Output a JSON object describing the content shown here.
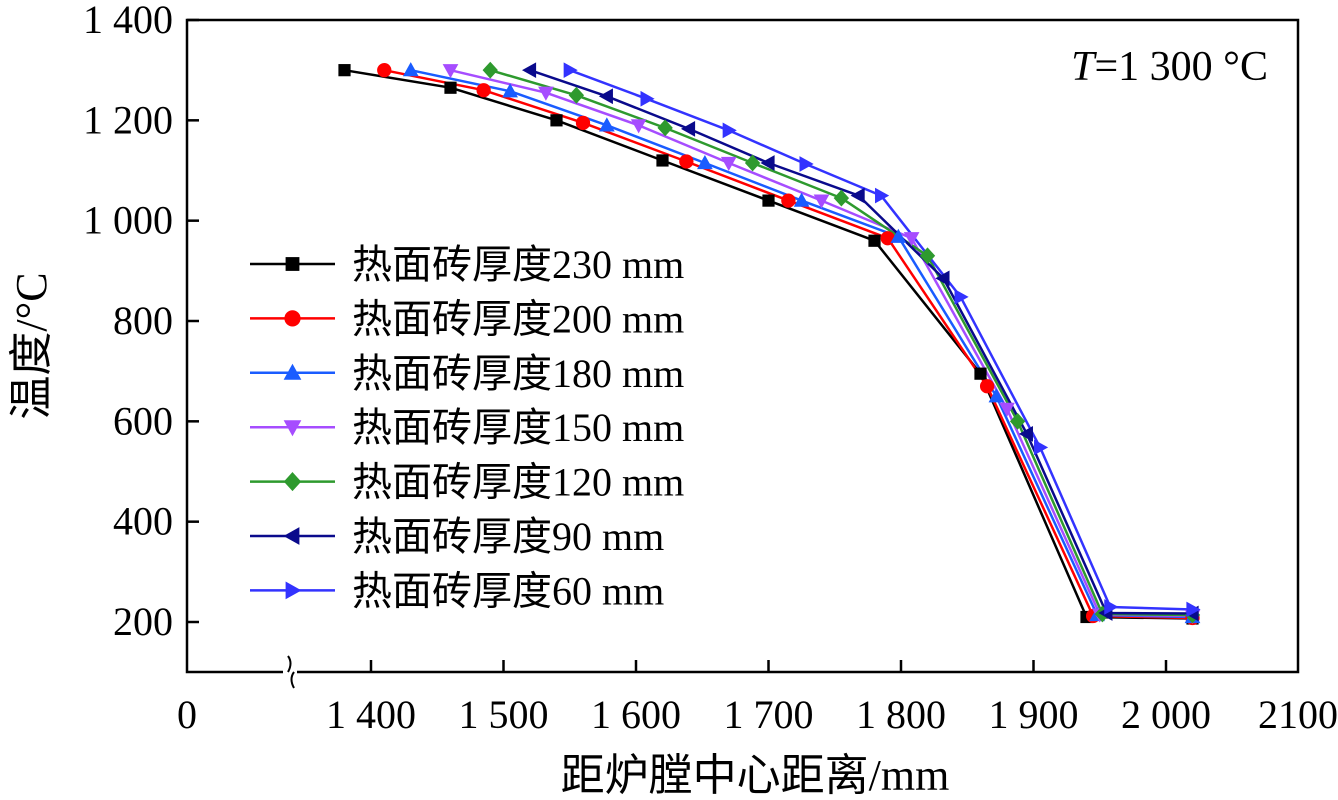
{
  "chart_data": {
    "type": "line",
    "annotation": "T=1 300 °C",
    "annotation_var": "T",
    "annotation_rest": "=1 300 °C",
    "xlabel": "距炉膛中心距离/mm",
    "ylabel": "温度/°C",
    "ylim": [
      100,
      1400
    ],
    "xlim": [
      1300,
      2100
    ],
    "x_break": true,
    "x_ticks": [
      {
        "value": 1400,
        "label": "1 400"
      },
      {
        "value": 1500,
        "label": "1 500"
      },
      {
        "value": 1600,
        "label": "1 600"
      },
      {
        "value": 1700,
        "label": "1 700"
      },
      {
        "value": 1800,
        "label": "1 800"
      },
      {
        "value": 1900,
        "label": "1 900"
      },
      {
        "value": 2000,
        "label": "2 000"
      },
      {
        "value": 2100,
        "label": "2100"
      }
    ],
    "x_zero_label": "0",
    "y_ticks": [
      {
        "value": 200,
        "label": "200"
      },
      {
        "value": 400,
        "label": "400"
      },
      {
        "value": 600,
        "label": "600"
      },
      {
        "value": 800,
        "label": "800"
      },
      {
        "value": 1000,
        "label": "1 000"
      },
      {
        "value": 1200,
        "label": "1 200"
      },
      {
        "value": 1400,
        "label": "1 400"
      }
    ],
    "grid": false,
    "legend_position": "left-middle",
    "series": [
      {
        "name": "热面砖厚度230 mm",
        "color": "#000000",
        "marker": "square",
        "x": [
          1380,
          1460,
          1540,
          1620,
          1700,
          1780,
          1860,
          1940,
          2020
        ],
        "y": [
          1300,
          1265,
          1200,
          1120,
          1040,
          960,
          695,
          210,
          207
        ]
      },
      {
        "name": "热面砖厚度200 mm",
        "color": "#ff0000",
        "marker": "circle",
        "x": [
          1410,
          1485,
          1560,
          1638,
          1715,
          1790,
          1865,
          1945,
          2020
        ],
        "y": [
          1300,
          1260,
          1195,
          1118,
          1040,
          965,
          670,
          212,
          208
        ]
      },
      {
        "name": "热面砖厚度180 mm",
        "color": "#1a5cff",
        "marker": "triangle-up",
        "x": [
          1430,
          1505,
          1578,
          1652,
          1725,
          1798,
          1872,
          1948,
          2020
        ],
        "y": [
          1300,
          1258,
          1190,
          1115,
          1040,
          968,
          650,
          214,
          210
        ]
      },
      {
        "name": "热面砖厚度150 mm",
        "color": "#a64dff",
        "marker": "triangle-down",
        "x": [
          1460,
          1532,
          1602,
          1670,
          1740,
          1808,
          1880,
          1950,
          2020
        ],
        "y": [
          1300,
          1255,
          1190,
          1115,
          1040,
          965,
          625,
          215,
          212
        ]
      },
      {
        "name": "热面砖厚度120 mm",
        "color": "#2e9a2e",
        "marker": "diamond",
        "x": [
          1490,
          1555,
          1622,
          1688,
          1755,
          1820,
          1888,
          1952,
          2020
        ],
        "y": [
          1300,
          1250,
          1185,
          1115,
          1045,
          930,
          600,
          216,
          214
        ]
      },
      {
        "name": "热面砖厚度90 mm",
        "color": "#0a0a8c",
        "marker": "triangle-left",
        "x": [
          1520,
          1578,
          1640,
          1700,
          1768,
          1832,
          1895,
          1955,
          2020
        ],
        "y": [
          1300,
          1248,
          1183,
          1115,
          1050,
          885,
          575,
          218,
          217
        ]
      },
      {
        "name": "热面砖厚度60 mm",
        "color": "#3333ff",
        "marker": "triangle-right",
        "x": [
          1550,
          1608,
          1670,
          1728,
          1785,
          1845,
          1905,
          1958,
          2020
        ],
        "y": [
          1300,
          1243,
          1180,
          1113,
          1050,
          848,
          548,
          230,
          225
        ]
      }
    ]
  }
}
